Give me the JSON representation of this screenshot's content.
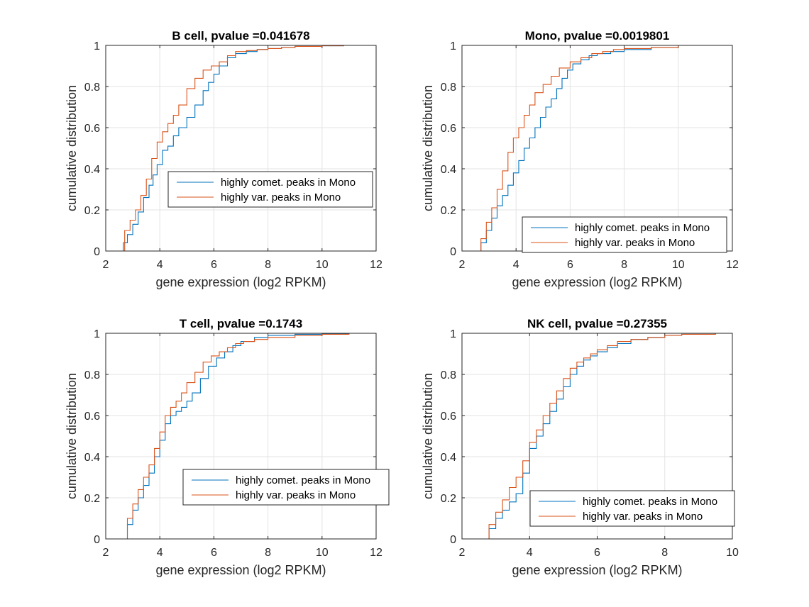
{
  "chart_data": [
    {
      "type": "line",
      "title": "B cell, pvalue =0.041678",
      "xlabel": "gene expression (log2 RPKM)",
      "ylabel": "cumulative distribution",
      "xlim": [
        2,
        12
      ],
      "ylim": [
        0,
        1
      ],
      "xticks": [
        "2",
        "4",
        "6",
        "8",
        "10",
        "12"
      ],
      "yticks": [
        "0",
        "0.2",
        "0.4",
        "0.6",
        "0.8",
        "1"
      ],
      "grid": true,
      "legend_position": "center-right",
      "series": [
        {
          "name": "highly comet. peaks in Mono",
          "color": "#0072BD",
          "x": [
            2.6,
            2.65,
            2.8,
            3.0,
            3.2,
            3.4,
            3.6,
            3.75,
            3.9,
            4.1,
            4.3,
            4.5,
            4.7,
            5.0,
            5.3,
            5.6,
            5.8,
            6.0,
            6.2,
            6.5,
            6.8,
            7.2,
            7.6,
            8.0,
            8.5,
            9.0,
            10.0,
            10.8
          ],
          "y": [
            0.0,
            0.04,
            0.08,
            0.13,
            0.19,
            0.26,
            0.32,
            0.37,
            0.42,
            0.49,
            0.51,
            0.56,
            0.6,
            0.65,
            0.71,
            0.78,
            0.82,
            0.86,
            0.9,
            0.94,
            0.96,
            0.97,
            0.98,
            0.985,
            0.99,
            0.995,
            0.998,
            1.0
          ]
        },
        {
          "name": "highly var. peaks in Mono",
          "color": "#D95319",
          "x": [
            2.6,
            2.7,
            2.9,
            3.1,
            3.3,
            3.5,
            3.7,
            3.9,
            4.1,
            4.3,
            4.5,
            4.7,
            5.0,
            5.3,
            5.6,
            5.9,
            6.2,
            6.5,
            6.8,
            7.2,
            7.6,
            8.0,
            8.5,
            9.0,
            10.0,
            10.8
          ],
          "y": [
            0.0,
            0.1,
            0.15,
            0.2,
            0.27,
            0.35,
            0.45,
            0.53,
            0.58,
            0.62,
            0.66,
            0.71,
            0.79,
            0.84,
            0.88,
            0.9,
            0.92,
            0.95,
            0.97,
            0.975,
            0.98,
            0.985,
            0.99,
            0.995,
            0.998,
            1.0
          ]
        }
      ]
    },
    {
      "type": "line",
      "title": "Mono, pvalue =0.0019801",
      "xlabel": "gene expression (log2 RPKM)",
      "ylabel": "cumulative distribution",
      "xlim": [
        2,
        12
      ],
      "ylim": [
        0,
        1
      ],
      "xticks": [
        "2",
        "4",
        "6",
        "8",
        "10",
        "12"
      ],
      "yticks": [
        "0",
        "0.2",
        "0.4",
        "0.6",
        "0.8",
        "1"
      ],
      "grid": true,
      "legend_position": "bottom-right",
      "series": [
        {
          "name": "highly comet. peaks in Mono",
          "color": "#0072BD",
          "x": [
            2.6,
            2.7,
            2.9,
            3.1,
            3.3,
            3.5,
            3.7,
            3.9,
            4.1,
            4.3,
            4.5,
            4.7,
            4.9,
            5.1,
            5.3,
            5.5,
            5.7,
            5.9,
            6.1,
            6.4,
            6.7,
            7.0,
            7.5,
            8.0,
            9.0,
            10.0
          ],
          "y": [
            0.0,
            0.04,
            0.1,
            0.16,
            0.22,
            0.27,
            0.32,
            0.38,
            0.44,
            0.5,
            0.55,
            0.6,
            0.65,
            0.7,
            0.74,
            0.79,
            0.84,
            0.88,
            0.91,
            0.93,
            0.95,
            0.96,
            0.97,
            0.98,
            0.99,
            1.0
          ]
        },
        {
          "name": "highly var. peaks in Mono",
          "color": "#D95319",
          "x": [
            2.6,
            2.7,
            2.9,
            3.1,
            3.3,
            3.5,
            3.7,
            3.9,
            4.1,
            4.3,
            4.5,
            4.7,
            5.0,
            5.3,
            5.6,
            6.0,
            6.4,
            6.8,
            7.2,
            7.6,
            8.0,
            9.0,
            9.4,
            10.0
          ],
          "y": [
            0.0,
            0.06,
            0.14,
            0.21,
            0.3,
            0.39,
            0.48,
            0.55,
            0.6,
            0.66,
            0.71,
            0.77,
            0.81,
            0.85,
            0.89,
            0.92,
            0.94,
            0.96,
            0.97,
            0.98,
            0.985,
            0.99,
            0.99,
            1.0
          ]
        }
      ]
    },
    {
      "type": "line",
      "title": "T cell, pvalue =0.1743",
      "xlabel": "gene expression (log2 RPKM)",
      "ylabel": "cumulative distribution",
      "xlim": [
        2,
        12
      ],
      "ylim": [
        0,
        1
      ],
      "xticks": [
        "2",
        "4",
        "6",
        "8",
        "10",
        "12"
      ],
      "yticks": [
        "0",
        "0.2",
        "0.4",
        "0.6",
        "0.8",
        "1"
      ],
      "grid": true,
      "legend_position": "bottom-right",
      "series": [
        {
          "name": "highly comet. peaks in Mono",
          "color": "#0072BD",
          "x": [
            2.6,
            2.8,
            3.0,
            3.2,
            3.4,
            3.6,
            3.8,
            4.0,
            4.2,
            4.4,
            4.6,
            4.8,
            5.0,
            5.2,
            5.5,
            5.8,
            6.1,
            6.4,
            6.7,
            7.0,
            7.5,
            8.0,
            9.0,
            10.0,
            11.0
          ],
          "y": [
            0.0,
            0.07,
            0.14,
            0.2,
            0.26,
            0.32,
            0.4,
            0.48,
            0.56,
            0.6,
            0.62,
            0.64,
            0.67,
            0.71,
            0.78,
            0.84,
            0.88,
            0.91,
            0.94,
            0.96,
            0.98,
            0.99,
            0.995,
            0.998,
            1.0
          ]
        },
        {
          "name": "highly var. peaks in Mono",
          "color": "#D95319",
          "x": [
            2.6,
            2.8,
            3.0,
            3.2,
            3.4,
            3.6,
            3.8,
            4.0,
            4.2,
            4.4,
            4.6,
            4.8,
            5.0,
            5.3,
            5.6,
            5.9,
            6.2,
            6.5,
            6.8,
            7.1,
            7.5,
            8.0,
            9.0,
            10.0,
            11.0
          ],
          "y": [
            0.0,
            0.1,
            0.17,
            0.24,
            0.3,
            0.36,
            0.44,
            0.52,
            0.6,
            0.64,
            0.67,
            0.71,
            0.76,
            0.81,
            0.86,
            0.89,
            0.91,
            0.93,
            0.95,
            0.96,
            0.97,
            0.98,
            0.99,
            0.995,
            1.0
          ]
        }
      ]
    },
    {
      "type": "line",
      "title": "NK cell, pvalue =0.27355",
      "xlabel": "gene expression (log2 RPKM)",
      "ylabel": "cumulative distribution",
      "xlim": [
        2,
        10
      ],
      "ylim": [
        0,
        1
      ],
      "xticks": [
        "2",
        "4",
        "6",
        "8",
        "10"
      ],
      "yticks": [
        "0",
        "0.2",
        "0.4",
        "0.6",
        "0.8",
        "1"
      ],
      "grid": true,
      "legend_position": "bottom-right",
      "series": [
        {
          "name": "highly comet. peaks in Mono",
          "color": "#0072BD",
          "x": [
            2.6,
            2.8,
            3.0,
            3.2,
            3.4,
            3.6,
            3.8,
            4.0,
            4.2,
            4.4,
            4.6,
            4.8,
            5.0,
            5.2,
            5.4,
            5.6,
            5.8,
            6.0,
            6.3,
            6.6,
            7.0,
            7.5,
            8.0,
            8.5,
            9.5
          ],
          "y": [
            0.0,
            0.05,
            0.1,
            0.14,
            0.18,
            0.22,
            0.32,
            0.44,
            0.5,
            0.56,
            0.62,
            0.68,
            0.74,
            0.8,
            0.84,
            0.87,
            0.89,
            0.91,
            0.93,
            0.95,
            0.97,
            0.98,
            0.99,
            0.995,
            1.0
          ]
        },
        {
          "name": "highly var. peaks in Mono",
          "color": "#D95319",
          "x": [
            2.6,
            2.8,
            3.0,
            3.2,
            3.4,
            3.6,
            3.8,
            4.0,
            4.2,
            4.4,
            4.6,
            4.8,
            5.0,
            5.2,
            5.4,
            5.6,
            5.8,
            6.0,
            6.3,
            6.6,
            7.0,
            7.5,
            8.0,
            8.5,
            9.5
          ],
          "y": [
            0.0,
            0.07,
            0.13,
            0.19,
            0.25,
            0.3,
            0.38,
            0.47,
            0.53,
            0.6,
            0.66,
            0.72,
            0.78,
            0.83,
            0.86,
            0.88,
            0.9,
            0.92,
            0.94,
            0.96,
            0.97,
            0.98,
            0.99,
            0.995,
            1.0
          ]
        }
      ]
    }
  ]
}
